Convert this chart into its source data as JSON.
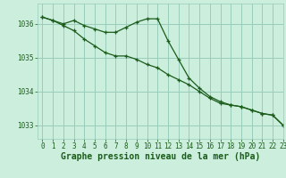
{
  "title": "Graphe pression niveau de la mer (hPa)",
  "background_color": "#cceedd",
  "grid_color": "#99ccbb",
  "line_color": "#1a5c1a",
  "xlim": [
    -0.5,
    23
  ],
  "ylim": [
    1032.6,
    1036.6
  ],
  "yticks": [
    1033,
    1034,
    1035,
    1036
  ],
  "xticks": [
    0,
    1,
    2,
    3,
    4,
    5,
    6,
    7,
    8,
    9,
    10,
    11,
    12,
    13,
    14,
    15,
    16,
    17,
    18,
    19,
    20,
    21,
    22,
    23
  ],
  "series1_x": [
    0,
    1,
    2,
    3,
    4,
    5,
    6,
    7,
    8,
    9,
    10,
    11,
    12,
    13,
    14,
    15,
    16,
    17,
    18,
    19,
    20,
    21,
    22,
    23
  ],
  "series1_y": [
    1036.2,
    1036.1,
    1035.95,
    1035.8,
    1035.55,
    1035.35,
    1035.15,
    1035.05,
    1035.05,
    1034.95,
    1034.8,
    1034.7,
    1034.5,
    1034.35,
    1034.2,
    1034.0,
    1033.8,
    1033.65,
    1033.6,
    1033.55,
    1033.45,
    1033.35,
    1033.3,
    1033.0
  ],
  "series2_x": [
    0,
    1,
    2,
    3,
    4,
    5,
    6,
    7,
    8,
    9,
    10,
    11,
    12,
    13,
    14,
    15,
    16,
    17,
    18,
    19,
    20,
    21,
    22,
    23
  ],
  "series2_y": [
    1036.2,
    1036.1,
    1036.0,
    1036.1,
    1035.95,
    1035.85,
    1035.75,
    1035.75,
    1035.9,
    1036.05,
    1036.15,
    1036.15,
    1035.5,
    1034.95,
    1034.4,
    1034.1,
    1033.85,
    1033.7,
    1033.6,
    1033.55,
    1033.45,
    1033.35,
    1033.3,
    1033.0
  ],
  "title_fontsize": 7,
  "tick_fontsize": 5.5
}
